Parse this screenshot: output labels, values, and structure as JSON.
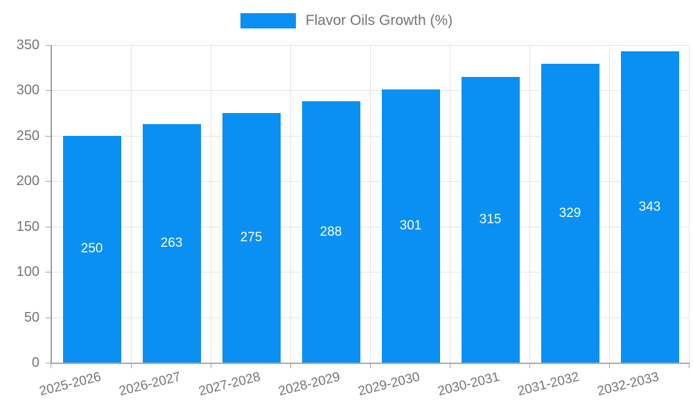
{
  "chart_data": {
    "type": "bar",
    "title": "Flavor Oils Growth (%)",
    "categories": [
      "2025-2026",
      "2026-2027",
      "2027-2028",
      "2028-2029",
      "2029-2030",
      "2030-2031",
      "2031-2032",
      "2032-2033"
    ],
    "values": [
      250,
      263,
      275,
      288,
      301,
      315,
      329,
      343
    ],
    "xlabel": "",
    "ylabel": "",
    "ylim": [
      0,
      350
    ],
    "ytick_step": 50,
    "grid": true,
    "legend_position": "top",
    "bar_color": "#0A90F2",
    "value_label_color": "#FFFFFF",
    "axis_text_color": "#757575",
    "grid_color": "#E3E3E3",
    "axis_line_color": "#9E9E9E"
  },
  "legend": {
    "items": [
      {
        "label": "Flavor Oils Growth (%)",
        "color": "#0A90F2"
      }
    ]
  }
}
